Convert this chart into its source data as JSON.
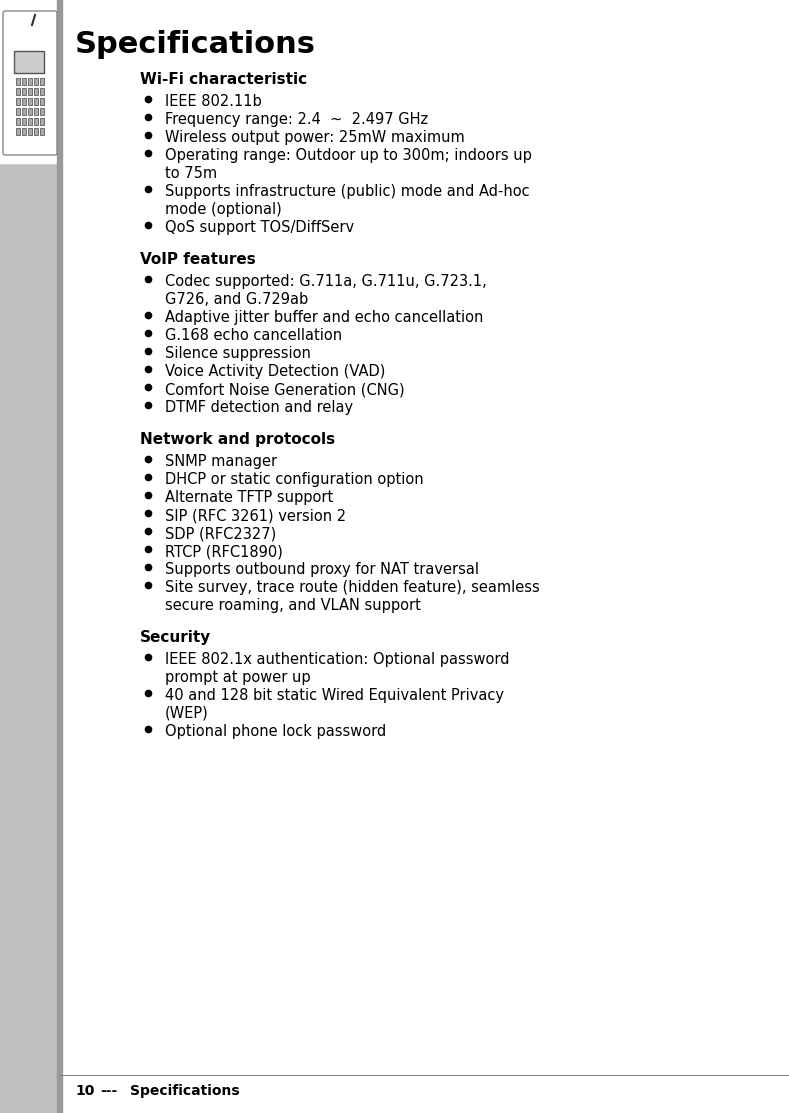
{
  "title": "Specifications",
  "title_fontsize": 22,
  "title_bold": true,
  "title_font": "Arial Black",
  "bg_color": "#ffffff",
  "left_bar_color": "#aaaaaa",
  "left_bar_width": 0.075,
  "sections": [
    {
      "heading": "Wi-Fi characteristic",
      "items": [
        "IEEE 802.11b",
        "Frequency range: 2.4  ~  2.497 GHz",
        "Wireless output power: 25mW maximum",
        "Operating range: Outdoor up to 300m; indoors up\n        to 75m",
        "Supports infrastructure (public) mode and Ad-hoc\n        mode (optional)",
        "QoS support TOS/DiffServ"
      ]
    },
    {
      "heading": "VoIP features",
      "items": [
        "Codec supported: G.711a, G.711u, G.723.1,\n        G726, and G.729ab",
        "Adaptive jitter buffer and echo cancellation",
        "G.168 echo cancellation",
        "Silence suppression",
        "Voice Activity Detection (VAD)",
        "Comfort Noise Generation (CNG)",
        "DTMF detection and relay"
      ]
    },
    {
      "heading": "Network and protocols",
      "items": [
        "SNMP manager",
        "DHCP or static configuration option",
        "Alternate TFTP support",
        "SIP (RFC 3261) version 2",
        "SDP (RFC2327)",
        "RTCP (RFC1890)",
        "Supports outbound proxy for NAT traversal",
        "Site survey, trace route (hidden feature), seamless\n        secure roaming, and VLAN support"
      ]
    },
    {
      "heading": "Security",
      "items": [
        "IEEE 802.1x authentication: Optional password\n        prompt at power up",
        "40 and 128 bit static Wired Equivalent Privacy\n        (WEP)",
        "Optional phone lock password"
      ]
    }
  ],
  "footer_page": "10",
  "footer_sep": "---",
  "footer_label": "Specifications",
  "heading_fontsize": 11,
  "item_fontsize": 10.5,
  "footer_fontsize": 10
}
